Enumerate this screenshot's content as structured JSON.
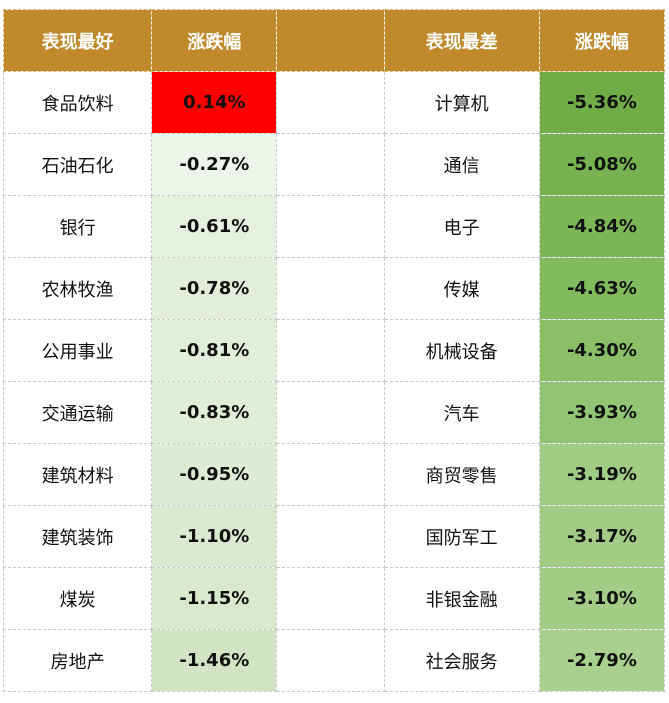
{
  "headers": {
    "best_name": "表现最好",
    "best_change": "涨跌幅",
    "worst_name": "表现最差",
    "worst_change": "涨跌幅"
  },
  "colors": {
    "header_bg": "#c08a2c",
    "positive": "#ff0000",
    "negative_scale": [
      "#eef5ea",
      "#cfe4c2",
      "#a9d08e",
      "#8fc36f",
      "#70ad47"
    ]
  },
  "best": [
    {
      "name": "食品饮料",
      "change": "0.14%"
    },
    {
      "name": "石油石化",
      "change": "-0.27%"
    },
    {
      "name": "银行",
      "change": "-0.61%"
    },
    {
      "name": "农林牧渔",
      "change": "-0.78%"
    },
    {
      "name": "公用事业",
      "change": "-0.81%"
    },
    {
      "name": "交通运输",
      "change": "-0.83%"
    },
    {
      "name": "建筑材料",
      "change": "-0.95%"
    },
    {
      "name": "建筑装饰",
      "change": "-1.10%"
    },
    {
      "name": "煤炭",
      "change": "-1.15%"
    },
    {
      "name": "房地产",
      "change": "-1.46%"
    }
  ],
  "worst": [
    {
      "name": "计算机",
      "change": "-5.36%"
    },
    {
      "name": "通信",
      "change": "-5.08%"
    },
    {
      "name": "电子",
      "change": "-4.84%"
    },
    {
      "name": "传媒",
      "change": "-4.63%"
    },
    {
      "name": "机械设备",
      "change": "-4.30%"
    },
    {
      "name": "汽车",
      "change": "-3.93%"
    },
    {
      "name": "商贸零售",
      "change": "-3.19%"
    },
    {
      "name": "国防军工",
      "change": "-3.17%"
    },
    {
      "name": "非银金融",
      "change": "-3.10%"
    },
    {
      "name": "社会服务",
      "change": "-2.79%"
    }
  ]
}
